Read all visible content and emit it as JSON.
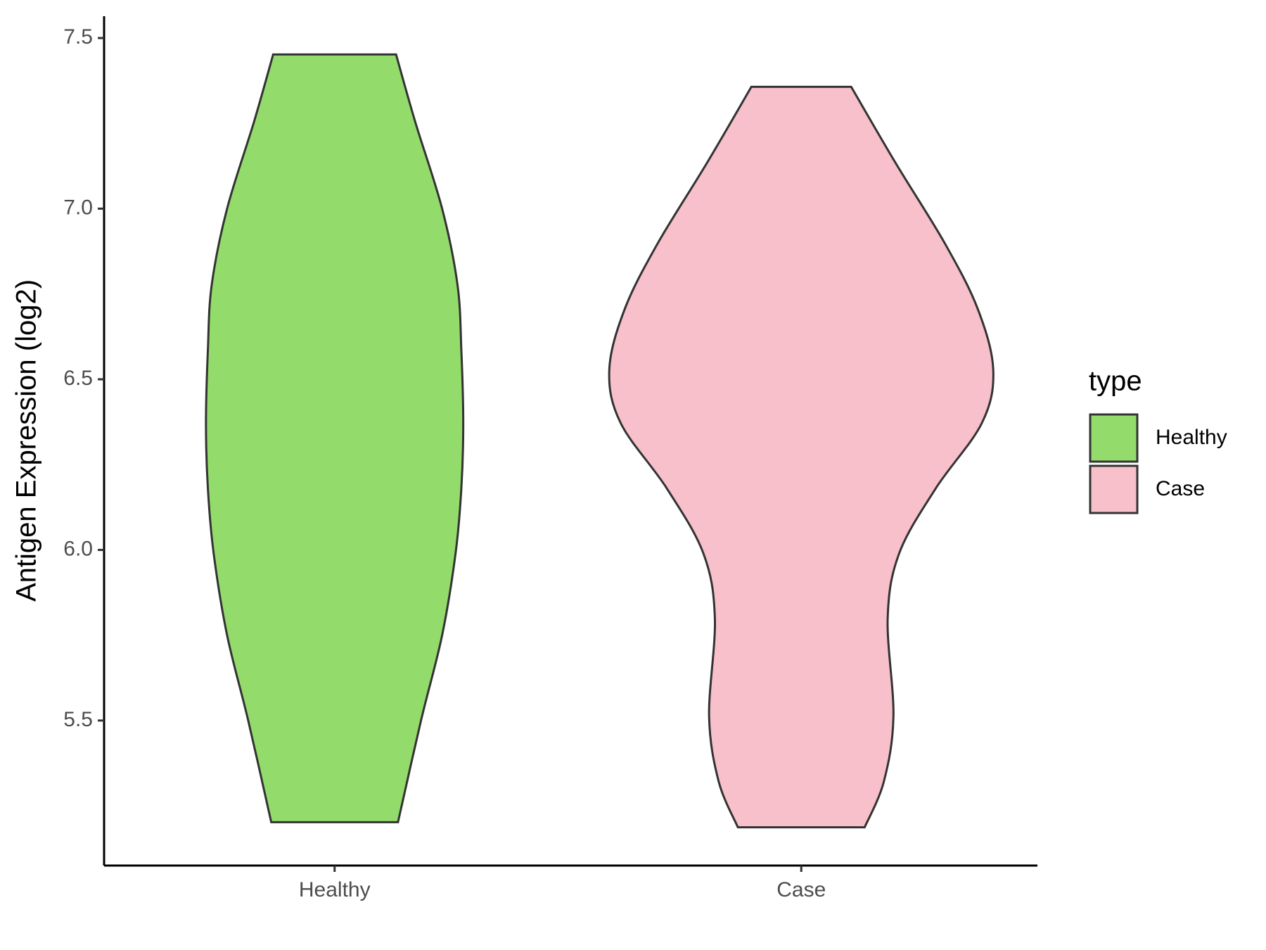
{
  "chart_data": {
    "type": "violin",
    "y_label": "Antigen Expression (log2)",
    "categories": [
      "Healthy",
      "Case"
    ],
    "legend_title": "type",
    "legend_position": "right",
    "ylim": [
      5.075,
      7.564
    ],
    "yticks": [
      5.5,
      6.0,
      6.5,
      7.0,
      7.5
    ],
    "series": [
      {
        "name": "Healthy",
        "color": "#93dc6b",
        "y": [
          7.452,
          7.254,
          7.0,
          6.777,
          6.586,
          6.371,
          6.18,
          5.99,
          5.75,
          5.5,
          5.202
        ],
        "width": [
          0.32,
          0.42,
          0.56,
          0.64,
          0.66,
          0.67,
          0.66,
          0.63,
          0.56,
          0.45,
          0.33
        ]
      },
      {
        "name": "Case",
        "color": "#f7c0cb",
        "y": [
          7.357,
          7.135,
          6.896,
          6.705,
          6.526,
          6.371,
          6.18,
          5.99,
          5.8,
          5.512,
          5.321,
          5.187
        ],
        "width": [
          0.26,
          0.49,
          0.75,
          0.92,
          1.0,
          0.94,
          0.7,
          0.51,
          0.45,
          0.48,
          0.43,
          0.33
        ]
      }
    ]
  }
}
